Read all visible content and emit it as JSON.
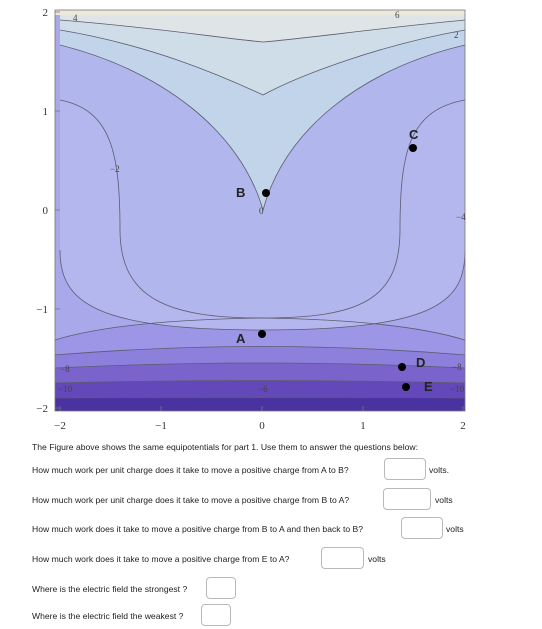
{
  "figure": {
    "x_ticks": [
      "−2",
      "−1",
      "0",
      "1",
      "2"
    ],
    "y_ticks": [
      "2",
      "1",
      "0",
      "−1",
      "−2"
    ],
    "contour_labels": [
      "4",
      "6",
      "2",
      "−2",
      "0",
      "−4",
      "−8",
      "−10",
      "−6",
      "−8",
      "−10"
    ],
    "points": {
      "A": "A",
      "B": "B",
      "C": "C",
      "D": "D",
      "E": "E"
    }
  },
  "text": {
    "intro": "The Figure above shows the same equipotentials for part 1. Use them to answer the questions below:",
    "questions": [
      {
        "label": "How much work per unit charge does it take to move a positive charge from A to B?",
        "value": "",
        "unit": "volts."
      },
      {
        "label": "How much work per unit charge does it take to move a positive charge from B to A?",
        "value": "",
        "unit": "volts"
      },
      {
        "label": "How much work does it take to move a positive charge from B to A and then back to B?",
        "value": "",
        "unit": "volts"
      },
      {
        "label": "How much work does it take to move a positive charge from E to A?",
        "value": "",
        "unit": "volts"
      },
      {
        "label": "Where is the electric field the strongest ?",
        "value": "",
        "unit": ""
      },
      {
        "label": "Where is the electric field the weakest ?",
        "value": "",
        "unit": ""
      }
    ]
  }
}
